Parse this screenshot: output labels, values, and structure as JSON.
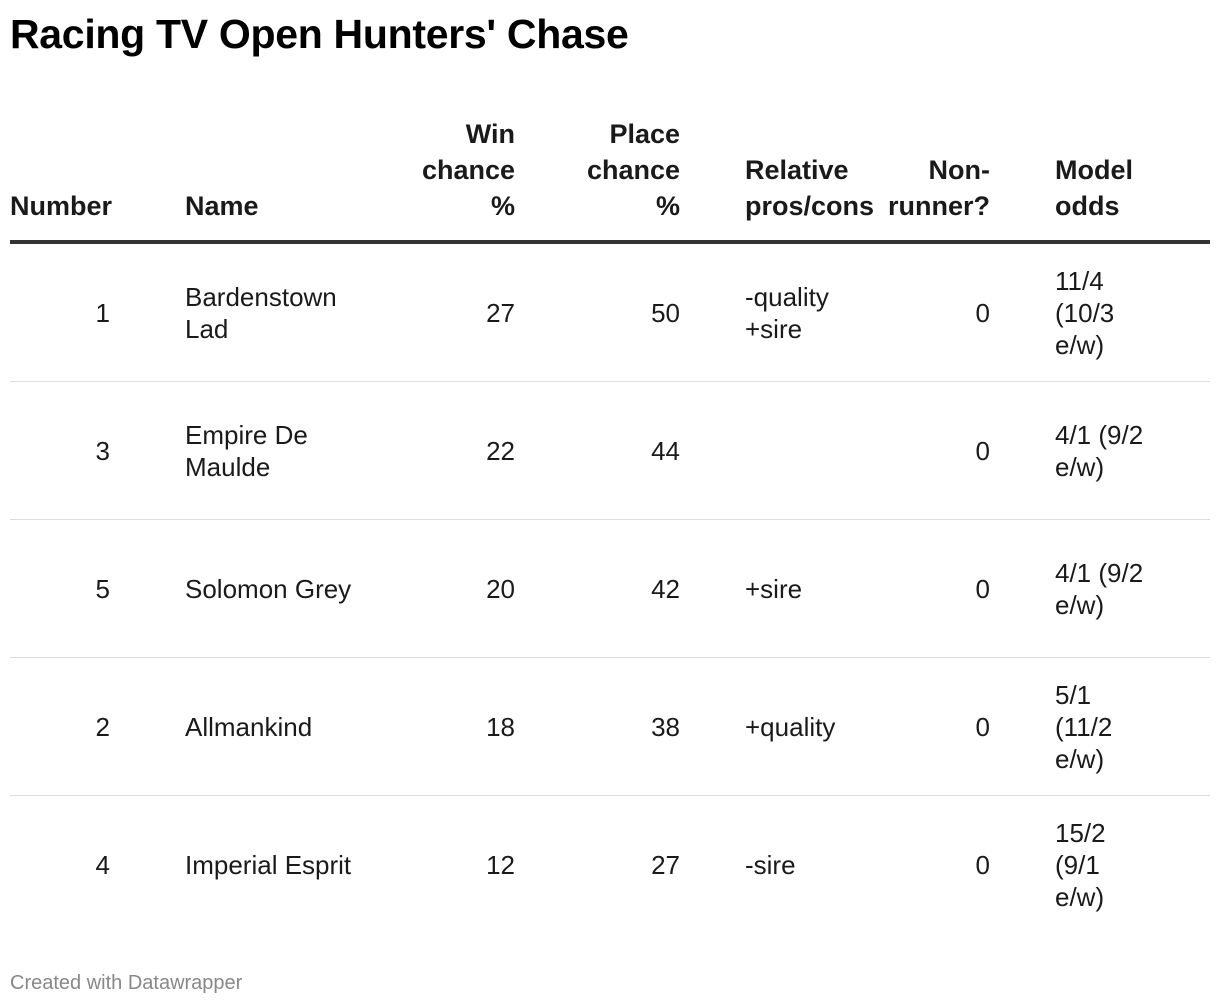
{
  "title": "Racing TV Open Hunters' Chase",
  "footer": "Created with Datawrapper",
  "columns": {
    "number": "Number",
    "name": "Name",
    "win": "Win chance %",
    "place": "Place chance %",
    "relative": "Relative pros/cons",
    "non_runner": "Non-runner?",
    "odds": "Model odds"
  },
  "chart_data": {
    "type": "table",
    "title": "Racing TV Open Hunters' Chase",
    "columns": [
      "Number",
      "Name",
      "Win chance %",
      "Place chance %",
      "Relative pros/cons",
      "Non-runner?",
      "Model odds"
    ],
    "rows": [
      {
        "number": "1",
        "name": "Bardenstown Lad",
        "win": "27",
        "place": "50",
        "relative": "-quality +sire",
        "non_runner": "0",
        "odds": "11/4 (10/3 e/w)"
      },
      {
        "number": "3",
        "name": "Empire De Maulde",
        "win": "22",
        "place": "44",
        "relative": "",
        "non_runner": "0",
        "odds": "4/1 (9/2 e/w)"
      },
      {
        "number": "5",
        "name": "Solomon Grey",
        "win": "20",
        "place": "42",
        "relative": "+sire",
        "non_runner": "0",
        "odds": "4/1 (9/2 e/w)"
      },
      {
        "number": "2",
        "name": "Allmankind",
        "win": "18",
        "place": "38",
        "relative": "+quality",
        "non_runner": "0",
        "odds": "5/1 (11/2 e/w)"
      },
      {
        "number": "4",
        "name": "Imperial Esprit",
        "win": "12",
        "place": "27",
        "relative": "-sire",
        "non_runner": "0",
        "odds": "15/2 (9/1 e/w)"
      }
    ]
  }
}
